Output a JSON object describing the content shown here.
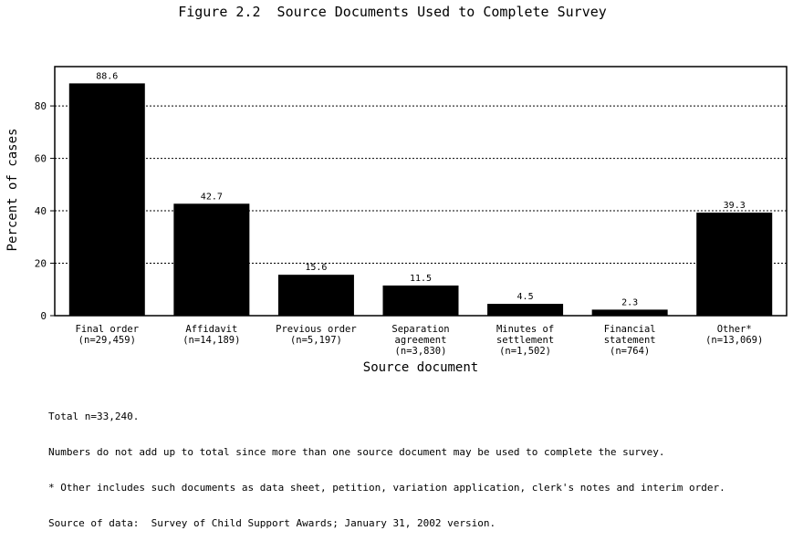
{
  "title": "Figure 2.2  Source Documents Used to Complete Survey",
  "chart_data": {
    "type": "bar",
    "title": "Figure 2.2  Source Documents Used to Complete Survey",
    "xlabel": "Source document",
    "ylabel": "Percent of cases",
    "ylim": [
      0,
      95
    ],
    "yticks": [
      0,
      20,
      40,
      60,
      80
    ],
    "grid": true,
    "categories": [
      [
        "Final order",
        "(n=29,459)"
      ],
      [
        "Affidavit",
        "(n=14,189)"
      ],
      [
        "Previous order",
        "(n=5,197)"
      ],
      [
        "Separation",
        "agreement",
        "(n=3,830)"
      ],
      [
        "Minutes of",
        "settlement",
        "(n=1,502)"
      ],
      [
        "Financial",
        "statement",
        "(n=764)"
      ],
      [
        "Other*",
        "(n=13,069)"
      ]
    ],
    "values": [
      88.6,
      42.7,
      15.6,
      11.5,
      4.5,
      2.3,
      39.3
    ],
    "data_labels": [
      "88.6",
      "42.7",
      "15.6",
      "11.5",
      "4.5",
      "2.3",
      "39.3"
    ],
    "bar_color": "#000000"
  },
  "notes": [
    "Total n=33,240.",
    "Numbers do not add up to total since more than one source document may be used to complete the survey.",
    "* Other includes such documents as data sheet, petition, variation application, clerk's notes and interim order.",
    "Source of data:  Survey of Child Support Awards; January 31, 2002 version."
  ]
}
